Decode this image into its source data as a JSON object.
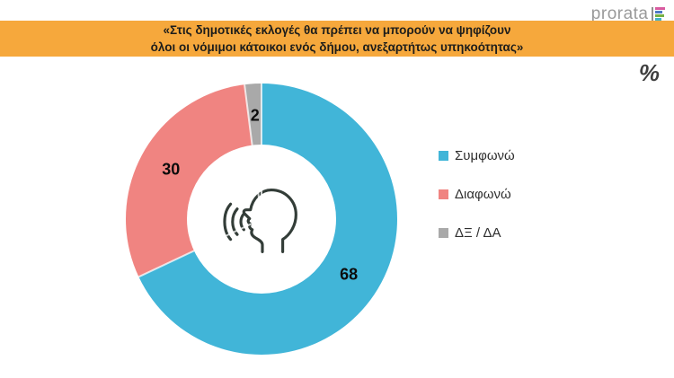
{
  "logo": {
    "text": "prorata"
  },
  "header": {
    "title_line1": "«Στις δημοτικές εκλογές θα πρέπει να μπορούν να ψηφίζουν",
    "title_line2": "όλοι οι νόμιμοι κάτοικοι ενός δήμου, ανεξαρτήτως υπηκοότητας»",
    "banner_color": "#f6a83c"
  },
  "unit_symbol": "%",
  "chart_data": {
    "type": "pie",
    "style": "donut",
    "title": "«Στις δημοτικές εκλογές θα πρέπει να μπορούν να ψηφίζουν όλοι οι νόμιμοι κάτοικοι ενός δήμου, ανεξαρτήτως υπηκοότητας»",
    "unit": "%",
    "categories": [
      "Συμφωνώ",
      "Διαφωνώ",
      "ΔΞ / ΔΑ"
    ],
    "values": [
      68,
      30,
      2
    ],
    "colors": [
      "#41b5d8",
      "#f08481",
      "#a9a9a9"
    ],
    "start_angle_deg": 0,
    "direction": "clockwise",
    "legend_position": "right",
    "center_icon": "speaking-head",
    "inner_radius_ratio": 0.55
  },
  "legend": {
    "items": [
      {
        "label": "Συμφωνώ",
        "color": "#41b5d8"
      },
      {
        "label": "Διαφωνώ",
        "color": "#f08481"
      },
      {
        "label": "ΔΞ / ΔΑ",
        "color": "#a9a9a9"
      }
    ]
  }
}
